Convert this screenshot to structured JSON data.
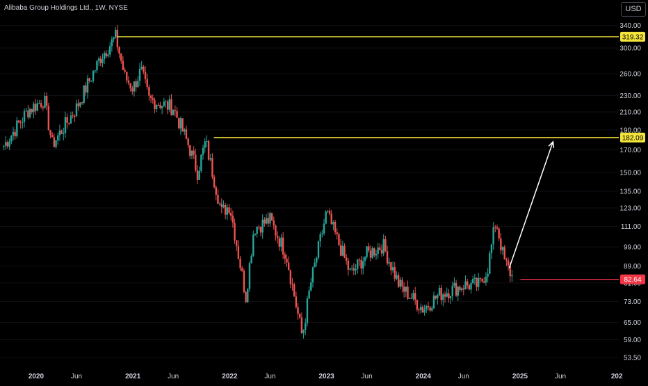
{
  "header": {
    "title": "Alibaba Group Holdings Ltd., 1W, NYSE",
    "currency": "USD"
  },
  "colors": {
    "up": "#26a69a",
    "down": "#ef5350",
    "resistance": "#f5e53b",
    "support": "#f23645",
    "arrow": "#ffffff",
    "text": "#d1d4dc"
  },
  "chart_data": {
    "type": "candlestick",
    "y_scale": "log",
    "ylim": [
      50,
      350
    ],
    "y_ticks": [
      "340.00",
      "300.00",
      "260.00",
      "230.00",
      "210.00",
      "190.00",
      "170.00",
      "150.00",
      "135.00",
      "123.00",
      "111.00",
      "99.00",
      "89.00",
      "81.00",
      "73.00",
      "65.00",
      "59.00",
      "53.50"
    ],
    "x_ticks": [
      "2020",
      "Jun",
      "2021",
      "Jun",
      "2022",
      "Jun",
      "2023",
      "Jun",
      "2024",
      "Jun",
      "2025",
      "Jun",
      "202"
    ],
    "x_tick_dates": [
      "2020-01",
      "2020-06",
      "2021-01",
      "2021-06",
      "2022-01",
      "2022-06",
      "2023-01",
      "2023-06",
      "2024-01",
      "2024-06",
      "2025-01",
      "2025-06",
      "2026-01"
    ],
    "price_path": [
      [
        "2019-09",
        174
      ],
      [
        "2019-12",
        212
      ],
      [
        "2020-02",
        225
      ],
      [
        "2020-03",
        175
      ],
      [
        "2020-06",
        215
      ],
      [
        "2020-09",
        285
      ],
      [
        "2020-10-27",
        319
      ],
      [
        "2020-12",
        255
      ],
      [
        "2021-01",
        240
      ],
      [
        "2021-02",
        265
      ],
      [
        "2021-03",
        225
      ],
      [
        "2021-06",
        215
      ],
      [
        "2021-08",
        172
      ],
      [
        "2021-09",
        150
      ],
      [
        "2021-10",
        178
      ],
      [
        "2021-12",
        120
      ],
      [
        "2022-01",
        125
      ],
      [
        "2022-03",
        75
      ],
      [
        "2022-04",
        110
      ],
      [
        "2022-06",
        115
      ],
      [
        "2022-08",
        95
      ],
      [
        "2022-10",
        60
      ],
      [
        "2022-11",
        80
      ],
      [
        "2023-01",
        120
      ],
      [
        "2023-04",
        85
      ],
      [
        "2023-06",
        95
      ],
      [
        "2023-08",
        100
      ],
      [
        "2023-10",
        80
      ],
      [
        "2024-01",
        70
      ],
      [
        "2024-03",
        76
      ],
      [
        "2024-06",
        80
      ],
      [
        "2024-08",
        80
      ],
      [
        "2024-09",
        88
      ],
      [
        "2024-10",
        115
      ],
      [
        "2024-11",
        92
      ],
      [
        "2024-12",
        84
      ]
    ],
    "annotations": {
      "resistance_1": {
        "value": 319.32,
        "label": "319.32",
        "start": "2020-10"
      },
      "resistance_2": {
        "value": 182.09,
        "label": "182.09",
        "start": "2021-10"
      },
      "support": {
        "value": 82.64,
        "label": "82.64",
        "start": "2024-12"
      },
      "projection_arrow": {
        "from": [
          "2024-12",
          84
        ],
        "to": [
          "2025-05",
          182.09
        ]
      }
    }
  }
}
